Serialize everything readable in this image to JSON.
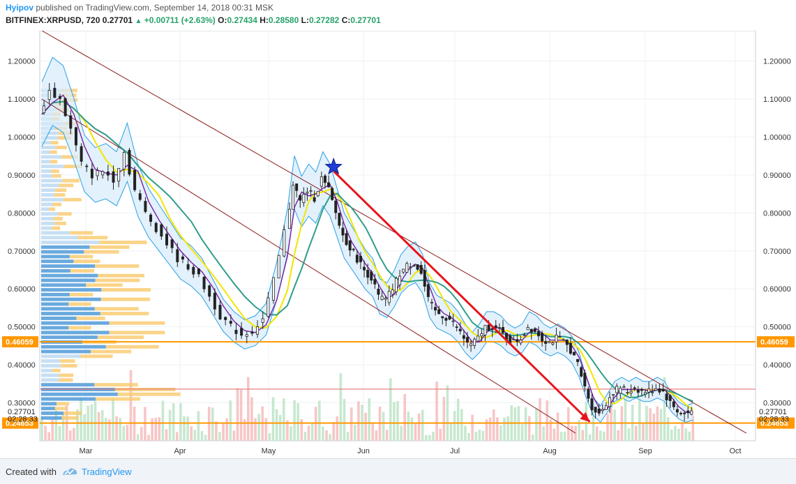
{
  "header": {
    "publisher": "Hyipov",
    "published_text": "published on TradingView.com, September 14, 2018 00:31 MSK",
    "symbol": "BITFINEX:XRPUSD, 720",
    "last": "0.27701",
    "change": "+0.00711 (+2.63%)",
    "o_label": "O:",
    "o_value": "0.27434",
    "h_label": "H:",
    "h_value": "0.28580",
    "l_label": "L:",
    "l_value": "0.27282",
    "c_label": "C:",
    "c_value": "0.27701"
  },
  "footer": {
    "created_with": "Created with",
    "brand": "TradingView"
  },
  "colors": {
    "accent": "#2196f3",
    "up": "#26a269",
    "down": "#e53935",
    "level": "#ff9800",
    "trend": "#8b1a1a"
  },
  "chart_data": {
    "type": "candlestick",
    "y_ticks": [
      "1.20000",
      "1.10000",
      "1.00000",
      "0.90000",
      "0.80000",
      "0.70000",
      "0.60000",
      "0.50000",
      "0.40000",
      "0.30000"
    ],
    "ylim": [
      0.2,
      1.28
    ],
    "x_ticks": [
      "Mar",
      "Apr",
      "May",
      "Jun",
      "Jul",
      "Aug",
      "Sep",
      "Oct"
    ],
    "price_path": [
      [
        0,
        1.06
      ],
      [
        3,
        1.12
      ],
      [
        6,
        1.1
      ],
      [
        9,
        1.02
      ],
      [
        12,
        0.93
      ],
      [
        15,
        0.9
      ],
      [
        18,
        0.91
      ],
      [
        21,
        0.89
      ],
      [
        24,
        0.96
      ],
      [
        27,
        0.86
      ],
      [
        30,
        0.8
      ],
      [
        33,
        0.76
      ],
      [
        36,
        0.72
      ],
      [
        39,
        0.68
      ],
      [
        42,
        0.66
      ],
      [
        45,
        0.63
      ],
      [
        48,
        0.58
      ],
      [
        51,
        0.53
      ],
      [
        54,
        0.5
      ],
      [
        57,
        0.48
      ],
      [
        60,
        0.49
      ],
      [
        63,
        0.52
      ],
      [
        66,
        0.62
      ],
      [
        69,
        0.75
      ],
      [
        71,
        0.88
      ],
      [
        73,
        0.83
      ],
      [
        75,
        0.86
      ],
      [
        77,
        0.84
      ],
      [
        79,
        0.89
      ],
      [
        81,
        0.86
      ],
      [
        83,
        0.8
      ],
      [
        85,
        0.74
      ],
      [
        87,
        0.71
      ],
      [
        89,
        0.68
      ],
      [
        91,
        0.65
      ],
      [
        93,
        0.63
      ],
      [
        95,
        0.58
      ],
      [
        97,
        0.57
      ],
      [
        99,
        0.6
      ],
      [
        101,
        0.64
      ],
      [
        103,
        0.66
      ],
      [
        105,
        0.67
      ],
      [
        107,
        0.64
      ],
      [
        109,
        0.57
      ],
      [
        111,
        0.54
      ],
      [
        113,
        0.53
      ],
      [
        115,
        0.52
      ],
      [
        117,
        0.5
      ],
      [
        119,
        0.47
      ],
      [
        121,
        0.45
      ],
      [
        123,
        0.47
      ],
      [
        125,
        0.5
      ],
      [
        127,
        0.5
      ],
      [
        129,
        0.49
      ],
      [
        131,
        0.47
      ],
      [
        133,
        0.46
      ],
      [
        135,
        0.47
      ],
      [
        137,
        0.5
      ],
      [
        139,
        0.49
      ],
      [
        141,
        0.47
      ],
      [
        143,
        0.46
      ],
      [
        145,
        0.47
      ],
      [
        147,
        0.46
      ],
      [
        149,
        0.44
      ],
      [
        151,
        0.4
      ],
      [
        153,
        0.34
      ],
      [
        155,
        0.29
      ],
      [
        157,
        0.27
      ],
      [
        159,
        0.3
      ],
      [
        161,
        0.33
      ],
      [
        163,
        0.34
      ],
      [
        165,
        0.33
      ],
      [
        167,
        0.34
      ],
      [
        169,
        0.33
      ],
      [
        171,
        0.33
      ],
      [
        173,
        0.34
      ],
      [
        175,
        0.33
      ],
      [
        177,
        0.3
      ],
      [
        179,
        0.28
      ],
      [
        181,
        0.27
      ],
      [
        183,
        0.277
      ]
    ],
    "horizontal_levels": [
      {
        "value": 0.46059,
        "label": "0.46059",
        "color": "#ff9800"
      },
      {
        "value": 0.24653,
        "label": "0.24653",
        "color": "#ff9800"
      },
      {
        "value": 0.336,
        "color": "#e57373"
      }
    ],
    "price_labels": [
      {
        "value": 0.27701,
        "label": "0.27701"
      },
      {
        "value": 0.258,
        "label": "02:28:33"
      }
    ],
    "trend_channel": [
      [
        0,
        1.28
      ],
      [
        198,
        0.22
      ]
    ],
    "trend_channel_lower": [
      [
        0,
        1.1
      ],
      [
        150,
        0.22
      ]
    ],
    "red_arrow": [
      [
        82,
        0.91
      ],
      [
        154,
        0.25
      ]
    ]
  }
}
